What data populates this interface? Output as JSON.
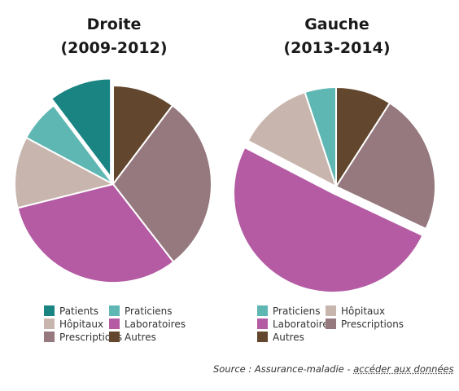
{
  "colors": {
    "patients": "#1a8483",
    "praticiens": "#5fb7b3",
    "hopitaux": "#c8b6ae",
    "laboratoires": "#b45ba4",
    "prescriptions": "#96787f",
    "autres": "#62472e"
  },
  "chart_data": [
    {
      "type": "pie",
      "title_line1": "Droite",
      "title_line2": "(2009-2012)",
      "slices": [
        {
          "label": "Autres",
          "key": "autres",
          "value": 10.3
        },
        {
          "label": "Prescriptions",
          "key": "prescriptions",
          "value": 29.2
        },
        {
          "label": "Laboratoires",
          "key": "laboratoires",
          "value": 31.6
        },
        {
          "label": "Hôpitaux",
          "key": "hopitaux",
          "value": 11.7
        },
        {
          "label": "Praticiens",
          "key": "praticiens",
          "value": 6.9
        },
        {
          "label": "Patients",
          "key": "patients",
          "value": 10.3,
          "exploded": true
        }
      ],
      "legend": [
        {
          "label": "Patients",
          "key": "patients"
        },
        {
          "label": "Praticiens",
          "key": "praticiens"
        },
        {
          "label": "Hôpitaux",
          "key": "hopitaux"
        },
        {
          "label": "Laboratoires",
          "key": "laboratoires"
        },
        {
          "label": "Prescriptions",
          "key": "prescriptions"
        },
        {
          "label": "Autres",
          "key": "autres"
        }
      ]
    },
    {
      "type": "pie",
      "title_line1": "Gauche",
      "title_line2": "(2013-2014)",
      "slices": [
        {
          "label": "Autres",
          "key": "autres",
          "value": 9.1
        },
        {
          "label": "Prescriptions",
          "key": "prescriptions",
          "value": 22.9
        },
        {
          "label": "Laboratoires",
          "key": "laboratoires",
          "value": 50.6,
          "exploded": true
        },
        {
          "label": "Hôpitaux",
          "key": "hopitaux",
          "value": 12.3
        },
        {
          "label": "Praticiens",
          "key": "praticiens",
          "value": 5.1
        }
      ],
      "legend": [
        {
          "label": "Praticiens",
          "key": "praticiens"
        },
        {
          "label": "Hôpitaux",
          "key": "hopitaux"
        },
        {
          "label": "Laboratoires",
          "key": "laboratoires"
        },
        {
          "label": "Prescriptions",
          "key": "prescriptions"
        },
        {
          "label": "Autres",
          "key": "autres"
        }
      ]
    }
  ],
  "source": {
    "prefix": "Source : Assurance-maladie - ",
    "link": "accéder aux données"
  }
}
